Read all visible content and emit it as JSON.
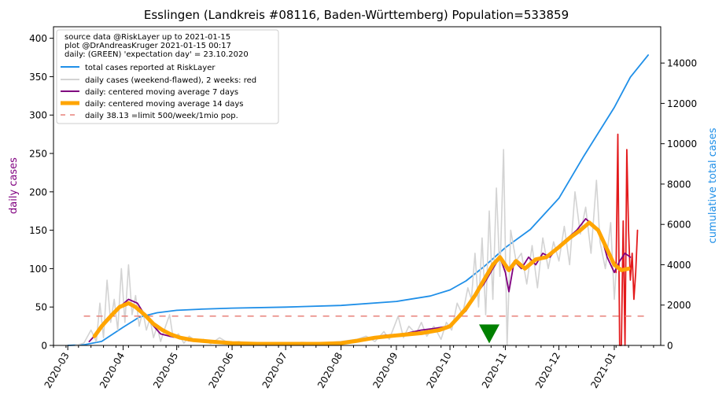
{
  "chart_data": {
    "type": "line",
    "title": "Esslingen (Landkreis #08116, Baden-Württemberg) Population=533859",
    "ylabel_left": "daily cases",
    "ylabel_right": "cumulative total cases",
    "ylim_left": [
      0,
      415
    ],
    "ylim_right": [
      0,
      15800
    ],
    "xlim": [
      "2020-02-22",
      "2021-01-27"
    ],
    "x_ticks": [
      "2020-03",
      "2020-04",
      "2020-05",
      "2020-06",
      "2020-07",
      "2020-08",
      "2020-09",
      "2020-10",
      "2020-11",
      "2020-12",
      "2021-01"
    ],
    "y_ticks_left": [
      0,
      50,
      100,
      150,
      200,
      250,
      300,
      350,
      400
    ],
    "y_ticks_right": [
      0,
      2000,
      4000,
      6000,
      8000,
      10000,
      12000,
      14000
    ],
    "legend": {
      "placement": "top-left",
      "info_lines": [
        "source data @RiskLayer up to 2021-01-15",
        "plot @DrAndreasKruger 2021-01-15 00:17",
        "daily: (GREEN) 'expectation day' = 23.10.2020"
      ],
      "entries": [
        {
          "label": "total cases reported at RiskLayer",
          "color": "#1f8fe8",
          "style": "solid"
        },
        {
          "label": "daily cases (weekend-flawed), 2 weeks: red",
          "color": "#d3d3d3",
          "style": "solid"
        },
        {
          "label": "daily: centered moving average 7 days",
          "color": "#800080",
          "style": "solid"
        },
        {
          "label": "daily: centered moving average 14 days",
          "color": "#ffa500",
          "style": "thick"
        },
        {
          "label": "daily 38.13 =limit 500/week/1mio pop.",
          "color": "#e8827a",
          "style": "dashed"
        }
      ]
    },
    "limit_line": {
      "value": 38.13,
      "x_start": "2020-03-10",
      "x_end": "2021-01-20"
    },
    "expectation_marker": {
      "date": "2020-10-23",
      "value": 15,
      "color": "#008000"
    },
    "colors": {
      "total": "#1f8fe8",
      "daily": "#d3d3d3",
      "daily_last2weeks": "#e31a1c",
      "ma7": "#800080",
      "ma14": "#ffa500",
      "limit": "#e8827a"
    },
    "series": {
      "total_cumulative": [
        [
          "2020-03-01",
          0
        ],
        [
          "2020-03-10",
          30
        ],
        [
          "2020-03-20",
          200
        ],
        [
          "2020-04-01",
          900
        ],
        [
          "2020-04-10",
          1400
        ],
        [
          "2020-04-20",
          1620
        ],
        [
          "2020-05-01",
          1740
        ],
        [
          "2020-05-15",
          1800
        ],
        [
          "2020-06-01",
          1850
        ],
        [
          "2020-07-01",
          1900
        ],
        [
          "2020-08-01",
          1980
        ],
        [
          "2020-09-01",
          2180
        ],
        [
          "2020-09-20",
          2450
        ],
        [
          "2020-10-01",
          2750
        ],
        [
          "2020-10-10",
          3200
        ],
        [
          "2020-10-20",
          3900
        ],
        [
          "2020-11-01",
          4850
        ],
        [
          "2020-11-15",
          5750
        ],
        [
          "2020-12-01",
          7300
        ],
        [
          "2020-12-15",
          9400
        ],
        [
          "2021-01-01",
          11800
        ],
        [
          "2021-01-10",
          13300
        ],
        [
          "2021-01-20",
          14400
        ]
      ],
      "daily_raw": [
        [
          "2020-03-05",
          0
        ],
        [
          "2020-03-10",
          3
        ],
        [
          "2020-03-14",
          20
        ],
        [
          "2020-03-17",
          5
        ],
        [
          "2020-03-19",
          55
        ],
        [
          "2020-03-21",
          10
        ],
        [
          "2020-03-23",
          85
        ],
        [
          "2020-03-25",
          30
        ],
        [
          "2020-03-27",
          60
        ],
        [
          "2020-03-29",
          20
        ],
        [
          "2020-03-31",
          100
        ],
        [
          "2020-04-02",
          30
        ],
        [
          "2020-04-04",
          105
        ],
        [
          "2020-04-06",
          40
        ],
        [
          "2020-04-08",
          65
        ],
        [
          "2020-04-10",
          25
        ],
        [
          "2020-04-12",
          45
        ],
        [
          "2020-04-14",
          20
        ],
        [
          "2020-04-16",
          35
        ],
        [
          "2020-04-18",
          10
        ],
        [
          "2020-04-20",
          25
        ],
        [
          "2020-04-22",
          5
        ],
        [
          "2020-04-24",
          20
        ],
        [
          "2020-04-27",
          40
        ],
        [
          "2020-04-29",
          10
        ],
        [
          "2020-05-02",
          15
        ],
        [
          "2020-05-05",
          3
        ],
        [
          "2020-05-08",
          12
        ],
        [
          "2020-05-12",
          5
        ],
        [
          "2020-05-16",
          8
        ],
        [
          "2020-05-20",
          2
        ],
        [
          "2020-05-25",
          10
        ],
        [
          "2020-05-30",
          3
        ],
        [
          "2020-06-05",
          5
        ],
        [
          "2020-06-10",
          2
        ],
        [
          "2020-06-20",
          3
        ],
        [
          "2020-07-01",
          2
        ],
        [
          "2020-07-10",
          4
        ],
        [
          "2020-07-20",
          3
        ],
        [
          "2020-08-01",
          5
        ],
        [
          "2020-08-10",
          8
        ],
        [
          "2020-08-15",
          12
        ],
        [
          "2020-08-20",
          5
        ],
        [
          "2020-08-25",
          18
        ],
        [
          "2020-08-28",
          8
        ],
        [
          "2020-09-02",
          38
        ],
        [
          "2020-09-05",
          10
        ],
        [
          "2020-09-08",
          25
        ],
        [
          "2020-09-12",
          15
        ],
        [
          "2020-09-15",
          30
        ],
        [
          "2020-09-18",
          12
        ],
        [
          "2020-09-22",
          25
        ],
        [
          "2020-09-26",
          8
        ],
        [
          "2020-09-29",
          30
        ],
        [
          "2020-10-02",
          20
        ],
        [
          "2020-10-05",
          55
        ],
        [
          "2020-10-08",
          40
        ],
        [
          "2020-10-11",
          75
        ],
        [
          "2020-10-13",
          60
        ],
        [
          "2020-10-15",
          120
        ],
        [
          "2020-10-17",
          50
        ],
        [
          "2020-10-19",
          140
        ],
        [
          "2020-10-21",
          40
        ],
        [
          "2020-10-23",
          175
        ],
        [
          "2020-10-25",
          60
        ],
        [
          "2020-10-27",
          205
        ],
        [
          "2020-10-29",
          90
        ],
        [
          "2020-10-31",
          255
        ],
        [
          "2020-11-02",
          0
        ],
        [
          "2020-11-04",
          150
        ],
        [
          "2020-11-07",
          110
        ],
        [
          "2020-11-10",
          120
        ],
        [
          "2020-11-13",
          80
        ],
        [
          "2020-11-16",
          130
        ],
        [
          "2020-11-19",
          75
        ],
        [
          "2020-11-22",
          140
        ],
        [
          "2020-11-25",
          100
        ],
        [
          "2020-11-28",
          135
        ],
        [
          "2020-12-01",
          110
        ],
        [
          "2020-12-04",
          155
        ],
        [
          "2020-12-07",
          105
        ],
        [
          "2020-12-10",
          200
        ],
        [
          "2020-12-13",
          145
        ],
        [
          "2020-12-16",
          180
        ],
        [
          "2020-12-19",
          120
        ],
        [
          "2020-12-22",
          215
        ],
        [
          "2020-12-24",
          135
        ],
        [
          "2020-12-27",
          100
        ],
        [
          "2020-12-30",
          160
        ],
        [
          "2021-01-01",
          60
        ],
        [
          "2021-01-02",
          95
        ]
      ],
      "daily_last2weeks": [
        [
          "2021-01-02",
          95
        ],
        [
          "2021-01-03",
          275
        ],
        [
          "2021-01-04",
          0
        ],
        [
          "2021-01-05",
          0
        ],
        [
          "2021-01-06",
          162
        ],
        [
          "2021-01-07",
          0
        ],
        [
          "2021-01-08",
          255
        ],
        [
          "2021-01-09",
          150
        ],
        [
          "2021-01-10",
          85
        ],
        [
          "2021-01-11",
          120
        ],
        [
          "2021-01-12",
          60
        ],
        [
          "2021-01-13",
          95
        ],
        [
          "2021-01-14",
          150
        ]
      ],
      "ma7": [
        [
          "2020-03-13",
          5
        ],
        [
          "2020-03-17",
          15
        ],
        [
          "2020-03-21",
          30
        ],
        [
          "2020-03-25",
          40
        ],
        [
          "2020-03-30",
          50
        ],
        [
          "2020-04-04",
          60
        ],
        [
          "2020-04-09",
          55
        ],
        [
          "2020-04-13",
          40
        ],
        [
          "2020-04-17",
          28
        ],
        [
          "2020-04-22",
          15
        ],
        [
          "2020-04-27",
          12
        ],
        [
          "2020-05-02",
          10
        ],
        [
          "2020-05-08",
          6
        ],
        [
          "2020-05-15",
          5
        ],
        [
          "2020-05-25",
          4
        ],
        [
          "2020-06-05",
          2
        ],
        [
          "2020-06-20",
          2
        ],
        [
          "2020-07-10",
          2
        ],
        [
          "2020-07-25",
          2
        ],
        [
          "2020-08-05",
          4
        ],
        [
          "2020-08-15",
          8
        ],
        [
          "2020-08-25",
          13
        ],
        [
          "2020-09-05",
          15
        ],
        [
          "2020-09-15",
          20
        ],
        [
          "2020-09-22",
          22
        ],
        [
          "2020-09-30",
          25
        ],
        [
          "2020-10-05",
          35
        ],
        [
          "2020-10-10",
          45
        ],
        [
          "2020-10-15",
          65
        ],
        [
          "2020-10-20",
          80
        ],
        [
          "2020-10-25",
          100
        ],
        [
          "2020-10-29",
          115
        ],
        [
          "2020-11-01",
          95
        ],
        [
          "2020-11-03",
          70
        ],
        [
          "2020-11-06",
          110
        ],
        [
          "2020-11-10",
          100
        ],
        [
          "2020-11-14",
          115
        ],
        [
          "2020-11-18",
          105
        ],
        [
          "2020-11-22",
          120
        ],
        [
          "2020-11-26",
          115
        ],
        [
          "2020-12-01",
          130
        ],
        [
          "2020-12-06",
          140
        ],
        [
          "2020-12-11",
          150
        ],
        [
          "2020-12-16",
          165
        ],
        [
          "2020-12-21",
          155
        ],
        [
          "2020-12-25",
          140
        ],
        [
          "2020-12-28",
          115
        ],
        [
          "2021-01-01",
          95
        ],
        [
          "2021-01-04",
          110
        ],
        [
          "2021-01-07",
          120
        ],
        [
          "2021-01-10",
          115
        ]
      ],
      "ma14": [
        [
          "2020-03-16",
          12
        ],
        [
          "2020-03-20",
          25
        ],
        [
          "2020-03-25",
          38
        ],
        [
          "2020-03-30",
          50
        ],
        [
          "2020-04-04",
          55
        ],
        [
          "2020-04-08",
          50
        ],
        [
          "2020-04-13",
          40
        ],
        [
          "2020-04-18",
          28
        ],
        [
          "2020-04-23",
          20
        ],
        [
          "2020-04-28",
          14
        ],
        [
          "2020-05-03",
          10
        ],
        [
          "2020-05-10",
          7
        ],
        [
          "2020-05-20",
          5
        ],
        [
          "2020-06-01",
          3
        ],
        [
          "2020-06-15",
          2
        ],
        [
          "2020-07-01",
          2
        ],
        [
          "2020-07-20",
          2
        ],
        [
          "2020-08-01",
          3
        ],
        [
          "2020-08-10",
          6
        ],
        [
          "2020-08-20",
          10
        ],
        [
          "2020-09-01",
          13
        ],
        [
          "2020-09-15",
          16
        ],
        [
          "2020-09-25",
          20
        ],
        [
          "2020-10-01",
          25
        ],
        [
          "2020-10-05",
          35
        ],
        [
          "2020-10-10",
          48
        ],
        [
          "2020-10-15",
          65
        ],
        [
          "2020-10-20",
          85
        ],
        [
          "2020-10-25",
          105
        ],
        [
          "2020-10-29",
          115
        ],
        [
          "2020-11-03",
          98
        ],
        [
          "2020-11-07",
          110
        ],
        [
          "2020-11-12",
          100
        ],
        [
          "2020-11-18",
          112
        ],
        [
          "2020-11-24",
          115
        ],
        [
          "2020-12-01",
          128
        ],
        [
          "2020-12-07",
          140
        ],
        [
          "2020-12-13",
          150
        ],
        [
          "2020-12-18",
          160
        ],
        [
          "2020-12-23",
          150
        ],
        [
          "2020-12-28",
          125
        ],
        [
          "2021-01-01",
          105
        ],
        [
          "2021-01-05",
          98
        ],
        [
          "2021-01-09",
          100
        ]
      ]
    }
  }
}
